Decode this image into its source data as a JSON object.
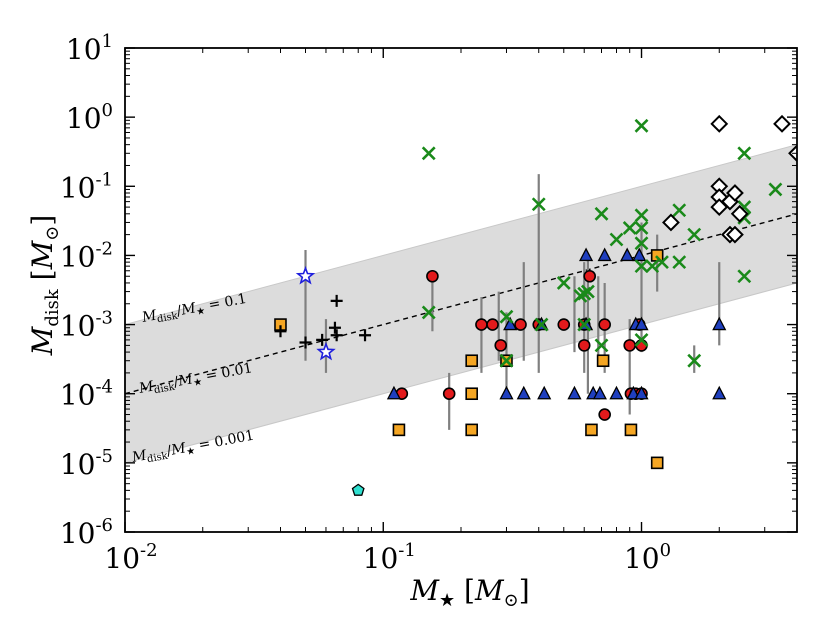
{
  "chart_data": {
    "type": "scatter",
    "xscale": "log",
    "yscale": "log",
    "xlim": [
      0.01,
      4
    ],
    "ylim": [
      1e-06,
      10
    ],
    "x_ticks": [
      {
        "value": 0.01,
        "base": "10",
        "exp": "-2"
      },
      {
        "value": 0.1,
        "base": "10",
        "exp": "-1"
      },
      {
        "value": 1,
        "base": "10",
        "exp": "0"
      }
    ],
    "y_ticks": [
      {
        "value": 1e-06,
        "base": "10",
        "exp": "-6"
      },
      {
        "value": 1e-05,
        "base": "10",
        "exp": "-5"
      },
      {
        "value": 0.0001,
        "base": "10",
        "exp": "-4"
      },
      {
        "value": 0.001,
        "base": "10",
        "exp": "-3"
      },
      {
        "value": 0.01,
        "base": "10",
        "exp": "-2"
      },
      {
        "value": 0.1,
        "base": "10",
        "exp": "-1"
      },
      {
        "value": 1,
        "base": "10",
        "exp": "0"
      },
      {
        "value": 10,
        "base": "10",
        "exp": "1"
      }
    ],
    "xlabel": {
      "main": "M",
      "sub": "★",
      "unit_open": "[",
      "unit_main": "M",
      "unit_sub": "⊙",
      "unit_close": "]"
    },
    "ylabel": {
      "main": "M",
      "sub": "disk",
      "unit_open": "[",
      "unit_main": "M",
      "unit_sub": "⊙",
      "unit_close": "]"
    },
    "ratio_lines": [
      {
        "ratio": 0.1,
        "label_num": "M",
        "label_num_sub": "disk",
        "label_den": "M",
        "label_den_sub": "★",
        "label_val": "= 0.1",
        "style": "edge"
      },
      {
        "ratio": 0.01,
        "label_num": "M",
        "label_num_sub": "disk",
        "label_den": "M",
        "label_den_sub": "★",
        "label_val": "= 0.01",
        "style": "dashed"
      },
      {
        "ratio": 0.001,
        "label_num": "M",
        "label_num_sub": "disk",
        "label_den": "M",
        "label_den_sub": "★",
        "label_val": "= 0.001",
        "style": "edge"
      }
    ],
    "band": {
      "lower_ratio": 0.001,
      "upper_ratio": 0.1,
      "color": "#dcdcdc"
    },
    "series": [
      {
        "name": "red circles",
        "marker": "circle",
        "color": "#e31a1c",
        "points": [
          [
            0.118,
            0.0001
          ],
          [
            0.155,
            0.005
          ],
          [
            0.18,
            0.0001
          ],
          [
            0.24,
            0.001
          ],
          [
            0.265,
            0.001
          ],
          [
            0.285,
            0.0005
          ],
          [
            0.34,
            0.001
          ],
          [
            0.4,
            0.001
          ],
          [
            0.5,
            0.001
          ],
          [
            0.6,
            0.0005
          ],
          [
            0.63,
            0.005
          ],
          [
            0.6,
            0.001
          ],
          [
            0.72,
            0.001
          ],
          [
            0.72,
            5e-05
          ],
          [
            0.9,
            0.0005
          ],
          [
            0.91,
            0.0001
          ],
          [
            0.95,
            0.0001
          ],
          [
            1.0,
            0.0001
          ],
          [
            0.98,
            0.001
          ],
          [
            1.0,
            0.0005
          ]
        ]
      },
      {
        "name": "blue triangles",
        "marker": "triangle",
        "color": "#1f3fbf",
        "points": [
          [
            0.11,
            0.0001
          ],
          [
            0.3,
            0.0001
          ],
          [
            0.35,
            0.0001
          ],
          [
            0.31,
            0.001
          ],
          [
            0.42,
            0.0001
          ],
          [
            0.41,
            0.001
          ],
          [
            0.55,
            0.0001
          ],
          [
            0.61,
            0.001
          ],
          [
            0.61,
            0.01
          ],
          [
            0.65,
            0.0001
          ],
          [
            0.69,
            0.0001
          ],
          [
            0.72,
            0.01
          ],
          [
            0.8,
            0.0001
          ],
          [
            0.88,
            0.01
          ],
          [
            0.93,
            0.0001
          ],
          [
            0.95,
            0.001
          ],
          [
            0.98,
            0.01
          ],
          [
            1.0,
            0.001
          ],
          [
            1.0,
            0.0001
          ],
          [
            2.0,
            0.001
          ],
          [
            2.0,
            0.0001
          ]
        ]
      },
      {
        "name": "orange squares",
        "marker": "square",
        "color": "#f5a623",
        "points": [
          [
            0.04,
            0.001
          ],
          [
            0.115,
            3e-05
          ],
          [
            0.22,
            0.0003
          ],
          [
            0.22,
            0.0001
          ],
          [
            0.22,
            3e-05
          ],
          [
            0.3,
            0.0003
          ],
          [
            0.64,
            3e-05
          ],
          [
            0.71,
            0.0003
          ],
          [
            0.91,
            3e-05
          ],
          [
            1.15,
            0.01
          ],
          [
            1.15,
            1e-05
          ]
        ]
      },
      {
        "name": "green crosses",
        "marker": "x",
        "color": "#1a8a1a",
        "points": [
          [
            0.15,
            0.3
          ],
          [
            0.15,
            0.0015
          ],
          [
            0.3,
            0.0003
          ],
          [
            0.3,
            0.0013
          ],
          [
            0.4,
            0.055
          ],
          [
            0.41,
            0.001
          ],
          [
            0.5,
            0.004
          ],
          [
            0.58,
            0.0026
          ],
          [
            0.6,
            0.0028
          ],
          [
            0.62,
            0.003
          ],
          [
            0.6,
            0.001
          ],
          [
            0.7,
            0.04
          ],
          [
            0.7,
            0.0005
          ],
          [
            0.8,
            0.017
          ],
          [
            0.9,
            0.025
          ],
          [
            1.0,
            0.75
          ],
          [
            1.0,
            0.038
          ],
          [
            1.0,
            0.025
          ],
          [
            1.0,
            0.015
          ],
          [
            1.0,
            0.007
          ],
          [
            1.0,
            0.0006
          ],
          [
            1.1,
            0.007
          ],
          [
            1.2,
            0.008
          ],
          [
            1.4,
            0.045
          ],
          [
            1.4,
            0.008
          ],
          [
            1.6,
            0.02
          ],
          [
            1.6,
            0.0003
          ],
          [
            2.5,
            0.3
          ],
          [
            2.5,
            0.05
          ],
          [
            2.5,
            0.035
          ],
          [
            2.5,
            0.005
          ],
          [
            3.3,
            0.09
          ]
        ]
      },
      {
        "name": "white diamonds",
        "marker": "diamond",
        "color": "#ffffff",
        "points": [
          [
            1.3,
            0.03
          ],
          [
            2.0,
            0.8
          ],
          [
            2.0,
            0.1
          ],
          [
            2.0,
            0.07
          ],
          [
            2.0,
            0.05
          ],
          [
            2.2,
            0.06
          ],
          [
            2.3,
            0.08
          ],
          [
            2.2,
            0.02
          ],
          [
            2.3,
            0.02
          ],
          [
            2.4,
            0.04
          ],
          [
            3.5,
            0.8
          ],
          [
            4.0,
            0.3
          ]
        ]
      },
      {
        "name": "black plus",
        "marker": "plus",
        "color": "#000000",
        "points": [
          [
            0.04,
            0.0008
          ],
          [
            0.05,
            0.00055
          ],
          [
            0.058,
            0.0006
          ],
          [
            0.065,
            0.0009
          ],
          [
            0.066,
            0.0022
          ],
          [
            0.066,
            0.0007
          ],
          [
            0.085,
            0.0007
          ]
        ]
      },
      {
        "name": "blue stars",
        "marker": "star",
        "color": "#1f1fdd",
        "points": [
          [
            0.05,
            0.005
          ],
          [
            0.06,
            0.0004
          ]
        ]
      },
      {
        "name": "cyan pentagon",
        "marker": "pentagon",
        "color": "#2fe0d0",
        "points": [
          [
            0.08,
            4e-06
          ]
        ]
      }
    ],
    "error_bars": [
      [
        0.05,
        0.0003,
        0.012
      ],
      [
        0.06,
        0.0002,
        0.0012
      ],
      [
        0.155,
        0.0008,
        0.006
      ],
      [
        0.18,
        3e-05,
        0.0002
      ],
      [
        0.24,
        0.0002,
        0.0025
      ],
      [
        0.28,
        0.0003,
        0.003
      ],
      [
        0.3,
        0.0001,
        0.0015
      ],
      [
        0.35,
        0.0003,
        0.008
      ],
      [
        0.4,
        0.0002,
        0.15
      ],
      [
        0.55,
        0.0004,
        0.005
      ],
      [
        0.6,
        0.0002,
        0.008
      ],
      [
        0.62,
        0.0001,
        0.01
      ],
      [
        0.68,
        0.0003,
        0.005
      ],
      [
        0.72,
        0.0002,
        0.004
      ],
      [
        0.9,
        5e-05,
        0.0012
      ],
      [
        1.0,
        0.0004,
        0.03
      ],
      [
        1.15,
        0.003,
        0.02
      ],
      [
        1.6,
        0.0002,
        0.0005
      ],
      [
        2.0,
        0.0005,
        0.008
      ]
    ]
  }
}
